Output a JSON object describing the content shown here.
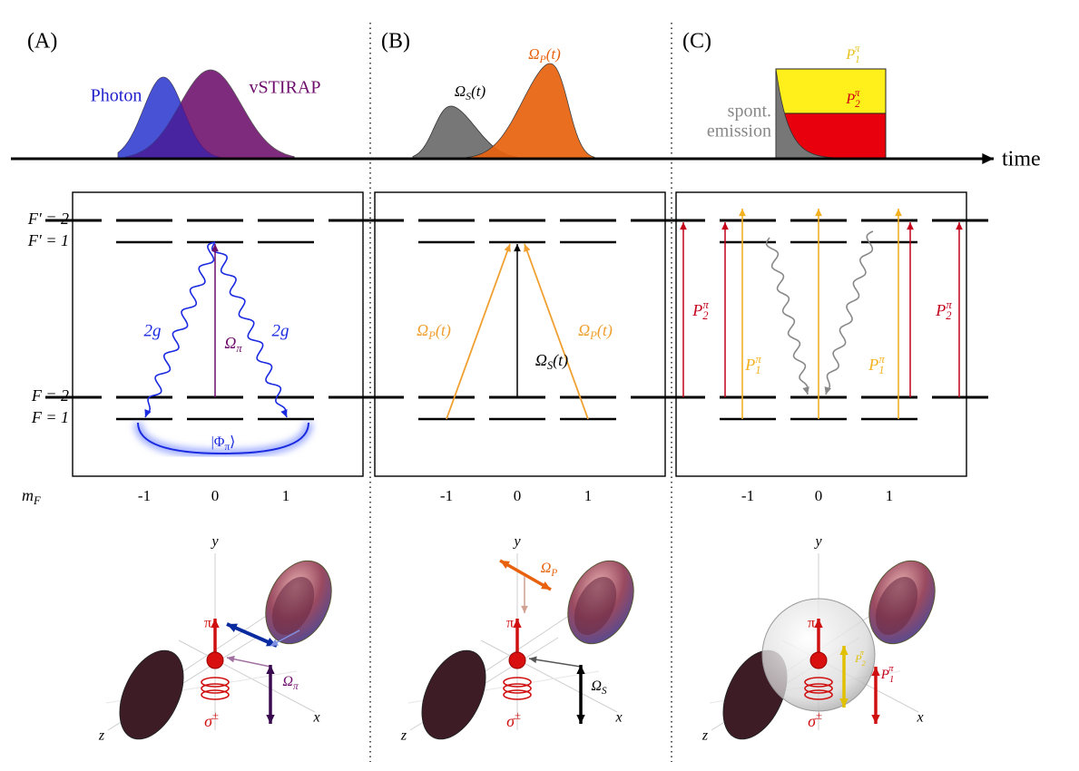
{
  "panels": [
    "(A)",
    "(B)",
    "(C)"
  ],
  "time": "time",
  "pulse_labels": {
    "photon": "Photon",
    "vstirap": "vSTIRAP",
    "omega_s": {
      "base": "Ω",
      "sub": "S",
      "tail": "(t)"
    },
    "omega_p": {
      "base": "Ω",
      "sub": "P",
      "tail": "(t)"
    },
    "p1": {
      "base": "P",
      "sub": "1",
      "sup": "π"
    },
    "p2": {
      "base": "P",
      "sub": "2",
      "sup": "π"
    },
    "spont": [
      "spont.",
      "emission"
    ]
  },
  "levels": [
    "F′ = 2",
    "F′ = 1",
    "F = 2",
    "F = 1"
  ],
  "m_f": {
    "label": {
      "base": "m",
      "sub": "F"
    },
    "ticks": [
      [
        "-1",
        "0",
        "1"
      ],
      [
        "-1",
        "0",
        "1"
      ],
      [
        "-1",
        "0",
        "1"
      ]
    ]
  },
  "transitions": {
    "a": {
      "coupling": [
        "2g",
        "2g"
      ],
      "drive": {
        "base": "Ω",
        "sub": "π"
      },
      "state": {
        "base": "|Φ",
        "sub": "π",
        "tail": "⟩"
      }
    },
    "b": {
      "pump": [
        {
          "base": "Ω",
          "sub": "P",
          "tail": "(t)"
        },
        {
          "base": "Ω",
          "sub": "P",
          "tail": "(t)"
        }
      ],
      "stokes": {
        "base": "Ω",
        "sub": "S",
        "tail": "(t)"
      }
    },
    "c": {
      "p2": [
        {
          "base": "P",
          "sub": "2",
          "sup": "π"
        },
        {
          "base": "P",
          "sub": "2",
          "sup": "π"
        }
      ],
      "p1": [
        {
          "base": "P",
          "sub": "1",
          "sup": "π"
        },
        {
          "base": "P",
          "sub": "1",
          "sup": "π"
        }
      ]
    }
  },
  "scenes": [
    {
      "axes": [
        "y",
        "x",
        "z"
      ],
      "pi": "π",
      "sigma": {
        "base": "σ",
        "sup": "±"
      },
      "field": {
        "base": "Ω",
        "sub": "π"
      }
    },
    {
      "axes": [
        "y",
        "x",
        "z"
      ],
      "pi": "π",
      "sigma": {
        "base": "σ",
        "sup": "±"
      },
      "field": {
        "base": "Ω",
        "sub": "S"
      },
      "pump": {
        "base": "Ω",
        "sub": "P"
      }
    },
    {
      "axes": [
        "y",
        "x",
        "z"
      ],
      "pi": "π",
      "sigma": {
        "base": "σ",
        "sup": "±"
      },
      "p2": {
        "base": "P",
        "sub": "2",
        "sup": "π"
      },
      "p1": {
        "base": "P",
        "sub": "1",
        "sup": "π"
      }
    }
  ]
}
